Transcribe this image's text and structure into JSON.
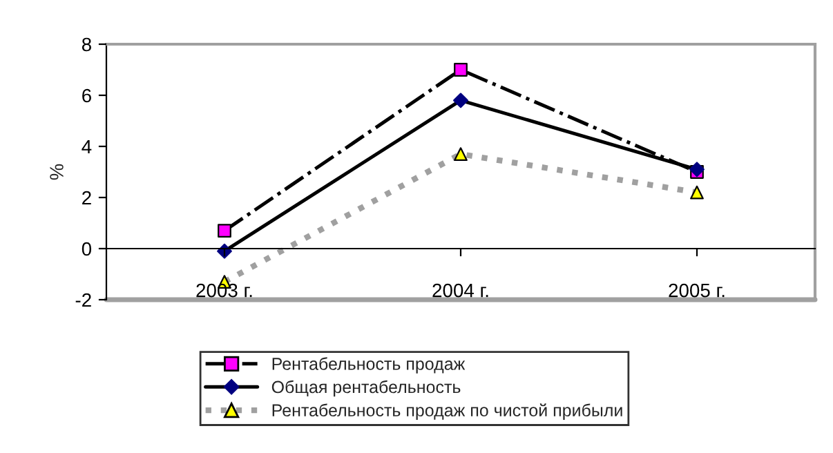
{
  "chart_data": {
    "type": "line",
    "ylabel": "%",
    "categories": [
      "2003 г.",
      "2004 г.",
      "2005 г."
    ],
    "series": [
      {
        "name": "Рентабельность продаж",
        "color": "#000000",
        "colors": [
          "#ff00ff",
          "#ff00ff",
          "#ff00ff"
        ],
        "marker": "square",
        "line_style": "dashdot",
        "values": [
          0.7,
          7.0,
          3.0
        ]
      },
      {
        "name": "Общая рентабельность",
        "color": "#000000",
        "colors": [
          "#000080",
          "#000080",
          "#000080"
        ],
        "marker": "diamond",
        "line_style": "solid",
        "values": [
          -0.1,
          5.8,
          3.1
        ]
      },
      {
        "name": "Рентабельность продаж по чистой прибыли",
        "color": "#a0a0a0",
        "colors": [
          "#ffff00",
          "#ffff00",
          "#ffff00"
        ],
        "marker": "triangle",
        "line_style": "dotted",
        "values": [
          -1.3,
          3.7,
          2.2
        ]
      }
    ],
    "ylim": [
      -2,
      8
    ],
    "yticks": [
      -2,
      0,
      2,
      4,
      6,
      8
    ],
    "legend": "bottom"
  }
}
